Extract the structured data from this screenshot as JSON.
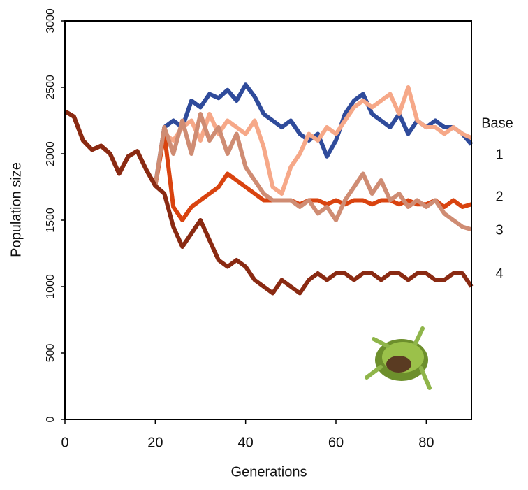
{
  "chart_data": {
    "type": "line",
    "x_label": "Generations",
    "y_label": "Population size",
    "x": [
      0,
      2,
      4,
      6,
      8,
      10,
      12,
      14,
      16,
      18,
      20,
      22,
      24,
      26,
      28,
      30,
      32,
      34,
      36,
      38,
      40,
      42,
      44,
      46,
      48,
      50,
      52,
      54,
      56,
      58,
      60,
      62,
      64,
      66,
      68,
      70,
      72,
      74,
      76,
      78,
      80,
      82,
      84,
      86,
      88,
      90
    ],
    "series": [
      {
        "name": "Base",
        "color": "#2f4b9b",
        "values": [
          2320,
          2280,
          2100,
          2030,
          2060,
          2000,
          1850,
          1980,
          2020,
          1880,
          1760,
          2200,
          2250,
          2200,
          2400,
          2350,
          2450,
          2420,
          2480,
          2400,
          2520,
          2430,
          2300,
          2250,
          2200,
          2250,
          2150,
          2100,
          2150,
          1980,
          2100,
          2300,
          2400,
          2450,
          2300,
          2250,
          2200,
          2300,
          2150,
          2250,
          2200,
          2250,
          2200,
          2200,
          2150,
          2070
        ]
      },
      {
        "name": "1",
        "color": "#f6a888",
        "values": [
          2320,
          2280,
          2100,
          2030,
          2060,
          2000,
          1850,
          1980,
          2020,
          1880,
          1760,
          2150,
          2100,
          2200,
          2250,
          2100,
          2300,
          2150,
          2250,
          2200,
          2150,
          2250,
          2050,
          1750,
          1700,
          1900,
          2000,
          2150,
          2100,
          2200,
          2150,
          2250,
          2350,
          2400,
          2350,
          2400,
          2450,
          2300,
          2500,
          2250,
          2200,
          2200,
          2150,
          2200,
          2150,
          2120
        ]
      },
      {
        "name": "2",
        "color": "#d9430f",
        "values": [
          2320,
          2280,
          2100,
          2030,
          2060,
          2000,
          1850,
          1980,
          2020,
          1880,
          1760,
          2150,
          1600,
          1500,
          1600,
          1650,
          1700,
          1750,
          1850,
          1800,
          1750,
          1700,
          1650,
          1650,
          1650,
          1650,
          1620,
          1650,
          1650,
          1620,
          1650,
          1620,
          1650,
          1650,
          1620,
          1650,
          1650,
          1620,
          1650,
          1620,
          1620,
          1650,
          1600,
          1650,
          1600,
          1620
        ]
      },
      {
        "name": "3",
        "color": "#cf8c73",
        "values": [
          2320,
          2280,
          2100,
          2030,
          2060,
          2000,
          1850,
          1980,
          2020,
          1880,
          1760,
          2200,
          2000,
          2250,
          2000,
          2300,
          2100,
          2200,
          2000,
          2150,
          1900,
          1800,
          1700,
          1650,
          1650,
          1650,
          1600,
          1650,
          1550,
          1600,
          1500,
          1650,
          1750,
          1850,
          1700,
          1800,
          1650,
          1700,
          1600,
          1650,
          1600,
          1650,
          1550,
          1500,
          1450,
          1430
        ]
      },
      {
        "name": "4",
        "color": "#8a2a12",
        "values": [
          2320,
          2280,
          2100,
          2030,
          2060,
          2000,
          1850,
          1980,
          2020,
          1880,
          1760,
          1700,
          1450,
          1300,
          1400,
          1500,
          1350,
          1200,
          1150,
          1200,
          1150,
          1050,
          1000,
          950,
          1050,
          1000,
          950,
          1050,
          1100,
          1050,
          1100,
          1100,
          1050,
          1100,
          1100,
          1050,
          1100,
          1100,
          1050,
          1100,
          1100,
          1050,
          1050,
          1100,
          1100,
          1000
        ]
      }
    ],
    "xlim": [
      0,
      90
    ],
    "xticks": [
      0,
      20,
      40,
      60,
      80
    ],
    "ylim": [
      0,
      3000
    ],
    "yticks": [
      0,
      500,
      1000,
      1500,
      2000,
      2500,
      3000
    ],
    "legend": "right"
  }
}
